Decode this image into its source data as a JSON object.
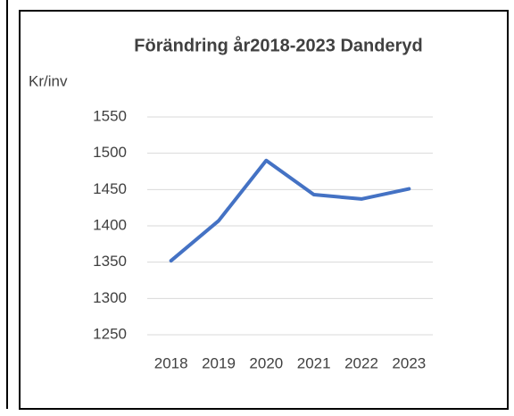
{
  "chart_data": {
    "type": "line",
    "title": "Förändring år2018-2023 Danderyd",
    "y_label": "Kr/inv",
    "categories": [
      "2018",
      "2019",
      "2020",
      "2021",
      "2022",
      "2023"
    ],
    "series": [
      {
        "color": "#4472c4",
        "values": [
          1352,
          1407,
          1490,
          1443,
          1437,
          1451
        ]
      }
    ],
    "ylim": [
      1250,
      1550
    ],
    "yticks": [
      1250,
      1300,
      1350,
      1400,
      1450,
      1500,
      1550
    ],
    "grid": true
  }
}
